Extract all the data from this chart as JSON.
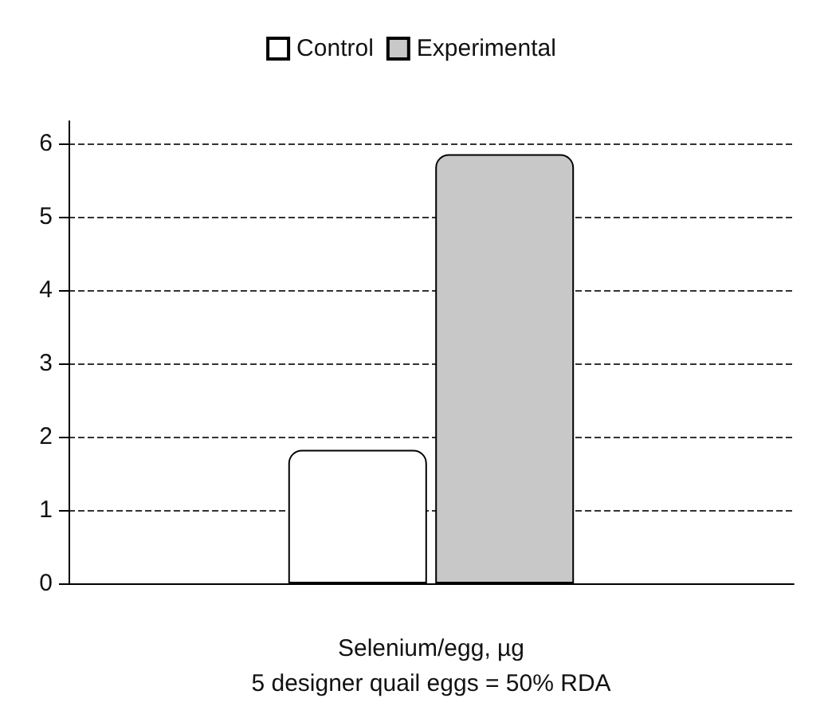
{
  "chart_data": {
    "type": "bar",
    "categories": [
      null
    ],
    "series": [
      {
        "name": "Control",
        "color": "#ffffff",
        "values": [
          1.82
        ]
      },
      {
        "name": "Experimental",
        "color": "#c8c8c8",
        "values": [
          5.85
        ]
      }
    ],
    "xlabel": "Selenium/egg, µg",
    "annotations": [
      "5 designer quail eggs = 50% RDA"
    ],
    "ylim": [
      0,
      6.3
    ],
    "yticks": [
      0,
      1,
      2,
      3,
      4,
      5,
      6
    ],
    "grid": "y",
    "legend": "top"
  }
}
